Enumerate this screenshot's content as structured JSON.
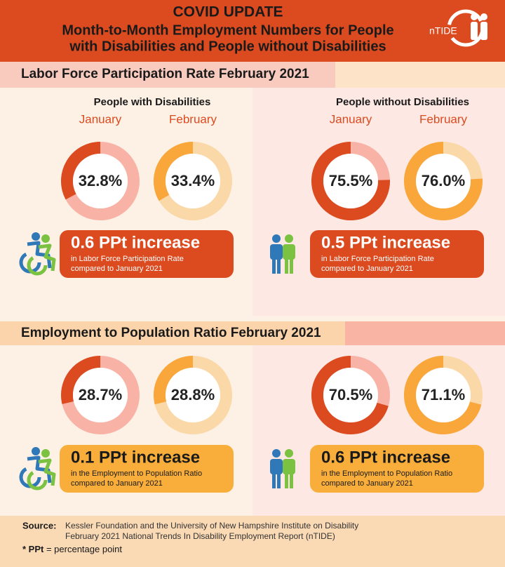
{
  "header": {
    "title": "COVID UPDATE",
    "subtitle_lines": [
      "Month-to-Month Employment Numbers for People",
      "with Disabilities and People without Disabilities"
    ],
    "logo": "nTIDE"
  },
  "sections": [
    {
      "heading": "Labor Force Participation Rate February 2021",
      "panels": [
        {
          "group": "People with Disabilities",
          "donuts": [
            {
              "month": "January",
              "value": 32.8,
              "label": "32.8%"
            },
            {
              "month": "February",
              "value": 33.4,
              "label": "33.4%"
            }
          ],
          "change": "0.6 PPt increase",
          "note_lines": [
            "in Labor Force Participation Rate",
            "compared to January 2021"
          ]
        },
        {
          "group": "People without Disabilities",
          "donuts": [
            {
              "month": "January",
              "value": 75.5,
              "label": "75.5%"
            },
            {
              "month": "February",
              "value": 76.0,
              "label": "76.0%"
            }
          ],
          "change": "0.5 PPt increase",
          "note_lines": [
            "in Labor Force Participation Rate",
            "compared to January 2021"
          ]
        }
      ]
    },
    {
      "heading": "Employment to Population Ratio February 2021",
      "panels": [
        {
          "donuts": [
            {
              "value": 28.7,
              "label": "28.7%"
            },
            {
              "value": 28.8,
              "label": "28.8%"
            }
          ],
          "change": "0.1 PPt increase",
          "note_lines": [
            "in the Employment to Population Ratio",
            "compared to January 2021"
          ]
        },
        {
          "donuts": [
            {
              "value": 70.5,
              "label": "70.5%"
            },
            {
              "value": 71.1,
              "label": "71.1%"
            }
          ],
          "change": "0.6 PPt increase",
          "note_lines": [
            "in the Employment to Population Ratio",
            "compared to January 2021"
          ]
        }
      ]
    }
  ],
  "footer": {
    "source_label": "Source:",
    "source_lines": [
      "Kessler Foundation and the University of New Hampshire Institute on Disability",
      "February 2021 National Trends In Disability Employment Report (nTIDE)"
    ],
    "ppt_term": "* PPt",
    "ppt_def": "= percentage point"
  }
}
